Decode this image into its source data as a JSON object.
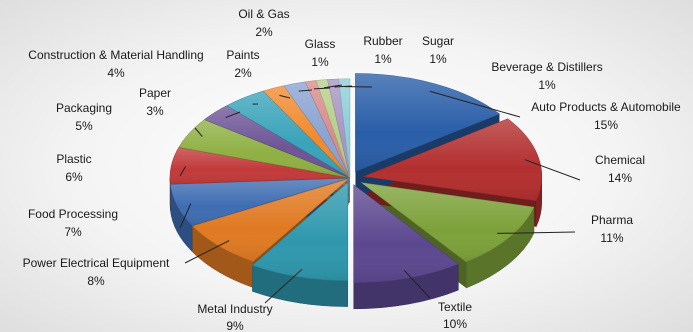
{
  "chart_data": {
    "type": "pie",
    "title": "",
    "categories": [
      "Auto Products & Automobile",
      "Chemical",
      "Pharma",
      "Textile",
      "Metal Industry",
      "Power Electrical Equipment",
      "Food Processing",
      "Plastic",
      "Packaging",
      "Paper",
      "Construction & Material Handling",
      "Paints",
      "Oil & Gas",
      "Glass",
      "Rubber",
      "Sugar",
      "Beverage & Distillers"
    ],
    "values": [
      15,
      14,
      11,
      10,
      9,
      8,
      7,
      6,
      5,
      3,
      4,
      2,
      2,
      1,
      1,
      1,
      1
    ],
    "value_labels": [
      "15%",
      "14%",
      "11%",
      "10%",
      "9%",
      "8%",
      "7%",
      "6%",
      "5%",
      "3%",
      "4%",
      "2%",
      "2%",
      "1%",
      "1%",
      "1%",
      "1%"
    ],
    "colors": [
      "#2a5ea8",
      "#b32f2f",
      "#7da13a",
      "#5c4890",
      "#2f98ad",
      "#e07a22",
      "#3f6db2",
      "#c23a3a",
      "#8fb043",
      "#6d5597",
      "#3aa3ba",
      "#f08a2e",
      "#8aa3d2",
      "#d98b8b",
      "#b6cf8a",
      "#a896c4",
      "#8fcdd8"
    ],
    "legend": "none",
    "style": "3d-exploded"
  }
}
